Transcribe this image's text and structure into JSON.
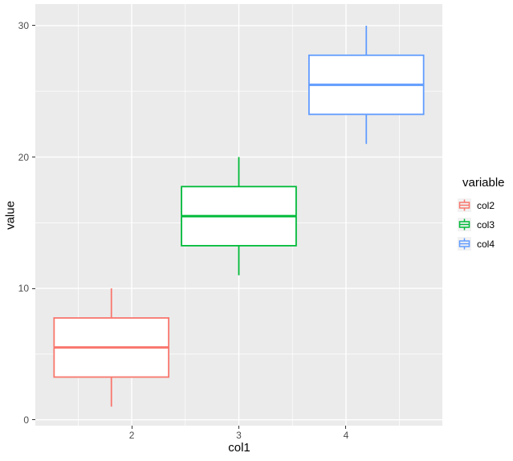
{
  "chart_data": {
    "type": "boxplot",
    "title": "",
    "xlabel": "col1",
    "ylabel": "value",
    "xlim": [
      1.1,
      4.9
    ],
    "ylim": [
      -0.45,
      31.65
    ],
    "x_ticks": [
      2,
      3,
      4
    ],
    "x_minor_ticks": [
      1.5,
      2.5,
      3.5,
      4.5
    ],
    "y_ticks": [
      0,
      10,
      20,
      30
    ],
    "y_minor_ticks": [
      5,
      15,
      25
    ],
    "grid": true,
    "panel_bg": "#EBEBEB",
    "grid_color": "#FFFFFF",
    "tick_label_color": "#4D4D4D",
    "axis_title_color": "#000000",
    "series": [
      {
        "name": "col2",
        "color": "#F8766D",
        "x": 1.81,
        "box_width": 1.07,
        "min": 1,
        "q1": 3.25,
        "median": 5.5,
        "q3": 7.75,
        "max": 10
      },
      {
        "name": "col3",
        "color": "#00BA38",
        "x": 3.0,
        "box_width": 1.07,
        "min": 11,
        "q1": 13.25,
        "median": 15.5,
        "q3": 17.75,
        "max": 20
      },
      {
        "name": "col4",
        "color": "#619CFF",
        "x": 4.19,
        "box_width": 1.07,
        "min": 21,
        "q1": 23.25,
        "median": 25.5,
        "q3": 27.75,
        "max": 30
      }
    ],
    "legend": {
      "title": "variable",
      "position": "right",
      "key_bg": "#F2F2F2",
      "entries": [
        {
          "label": "col2",
          "color": "#F8766D"
        },
        {
          "label": "col3",
          "color": "#00BA38"
        },
        {
          "label": "col4",
          "color": "#619CFF"
        }
      ]
    }
  }
}
